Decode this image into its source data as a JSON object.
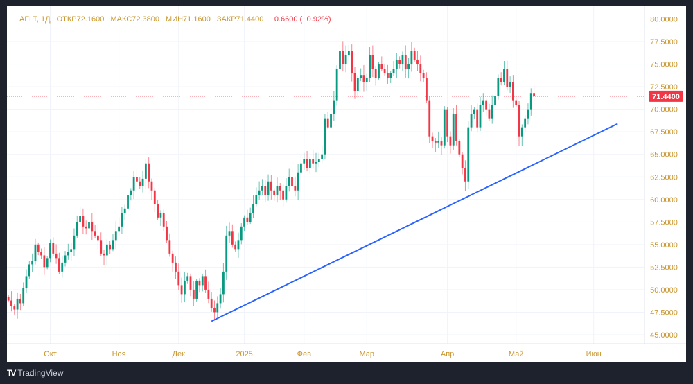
{
  "header": {
    "symbol": "AFLT, 1Д",
    "open": "ОТКР72.1600",
    "high": "МАКС72.3800",
    "low": "МИН71.1600",
    "close": "ЗАКР71.4400",
    "change": "−0.6600 (−0.92%)"
  },
  "brand": {
    "name": "TradingView"
  },
  "colors": {
    "up": "#089981",
    "down": "#f23645",
    "trendline": "#2962ff",
    "axis_text": "#c9962e",
    "price_label": "#f23645"
  },
  "chart_data": {
    "type": "candlestick",
    "symbol": "AFLT",
    "interval": "1D",
    "ylim": [
      44,
      81.5
    ],
    "y_ticks": [
      "45.0000",
      "47.5000",
      "50.0000",
      "52.5000",
      "55.0000",
      "57.5000",
      "60.0000",
      "62.5000",
      "65.0000",
      "67.5000",
      "70.0000",
      "72.5000",
      "75.0000",
      "77.5000",
      "80.0000"
    ],
    "x_labels": [
      {
        "label": "Окт",
        "index": 14
      },
      {
        "label": "Ноя",
        "index": 37
      },
      {
        "label": "Дек",
        "index": 57
      },
      {
        "label": "2025",
        "index": 79
      },
      {
        "label": "Фев",
        "index": 99
      },
      {
        "label": "Мар",
        "index": 120
      },
      {
        "label": "Апр",
        "index": 147
      },
      {
        "label": "Май",
        "index": 170
      },
      {
        "label": "Июн",
        "index": 196
      }
    ],
    "x_range_index": [
      -0.5,
      213
    ],
    "last_price": 71.44,
    "last_price_label": "71.4400",
    "first_open": 49.2,
    "closes": [
      48.8,
      48.2,
      47.8,
      49.0,
      48.5,
      50.2,
      51.5,
      52.8,
      53.2,
      55.0,
      54.2,
      53.8,
      52.5,
      53.5,
      55.2,
      54.0,
      53.5,
      52.0,
      53.0,
      53.8,
      54.2,
      54.5,
      56.0,
      57.5,
      58.2,
      57.0,
      56.8,
      57.5,
      56.5,
      56.0,
      55.5,
      54.0,
      53.8,
      55.0,
      54.5,
      55.5,
      56.5,
      57.0,
      58.5,
      59.0,
      60.5,
      61.0,
      62.5,
      62.0,
      61.5,
      62.3,
      64.0,
      62.0,
      61.0,
      59.5,
      58.0,
      58.5,
      57.0,
      55.5,
      54.0,
      53.0,
      52.0,
      50.5,
      49.5,
      51.0,
      51.5,
      50.0,
      49.0,
      51.0,
      50.5,
      51.5,
      50.0,
      49.0,
      48.0,
      47.5,
      48.5,
      49.5,
      52.0,
      56.0,
      56.5,
      55.0,
      54.5,
      55.5,
      57.0,
      58.0,
      57.5,
      58.5,
      59.5,
      60.5,
      61.0,
      61.5,
      60.5,
      62.0,
      61.0,
      60.5,
      61.5,
      61.0,
      60.0,
      61.5,
      62.5,
      61.5,
      61.0,
      63.0,
      64.0,
      64.5,
      63.5,
      64.5,
      64.0,
      64.2,
      64.5,
      65.0,
      69.0,
      68.0,
      69.5,
      71.0,
      74.5,
      76.5,
      75.0,
      76.0,
      76.5,
      74.0,
      72.0,
      73.5,
      73.8,
      73.0,
      73.5,
      76.0,
      74.5,
      73.5,
      75.0,
      74.5,
      74.0,
      73.5,
      74.0,
      74.5,
      75.5,
      75.0,
      76.0,
      74.5,
      75.0,
      76.5,
      75.5,
      75.0,
      74.0,
      73.5,
      71.0,
      67.0,
      66.5,
      66.3,
      66.5,
      66.0,
      70.0,
      67.0,
      66.0,
      69.5,
      66.5,
      65.0,
      63.5,
      62.0,
      68.0,
      69.5,
      70.0,
      68.0,
      70.5,
      71.0,
      70.0,
      69.0,
      70.5,
      71.5,
      73.5,
      73.0,
      74.5,
      72.5,
      73.0,
      71.0,
      70.5,
      67.0,
      68.0,
      69.0,
      70.0,
      71.8,
      71.44
    ],
    "trendline": {
      "start": {
        "index": 68,
        "price": 46.5
      },
      "end": {
        "index": 204,
        "price": 68.4
      }
    }
  }
}
